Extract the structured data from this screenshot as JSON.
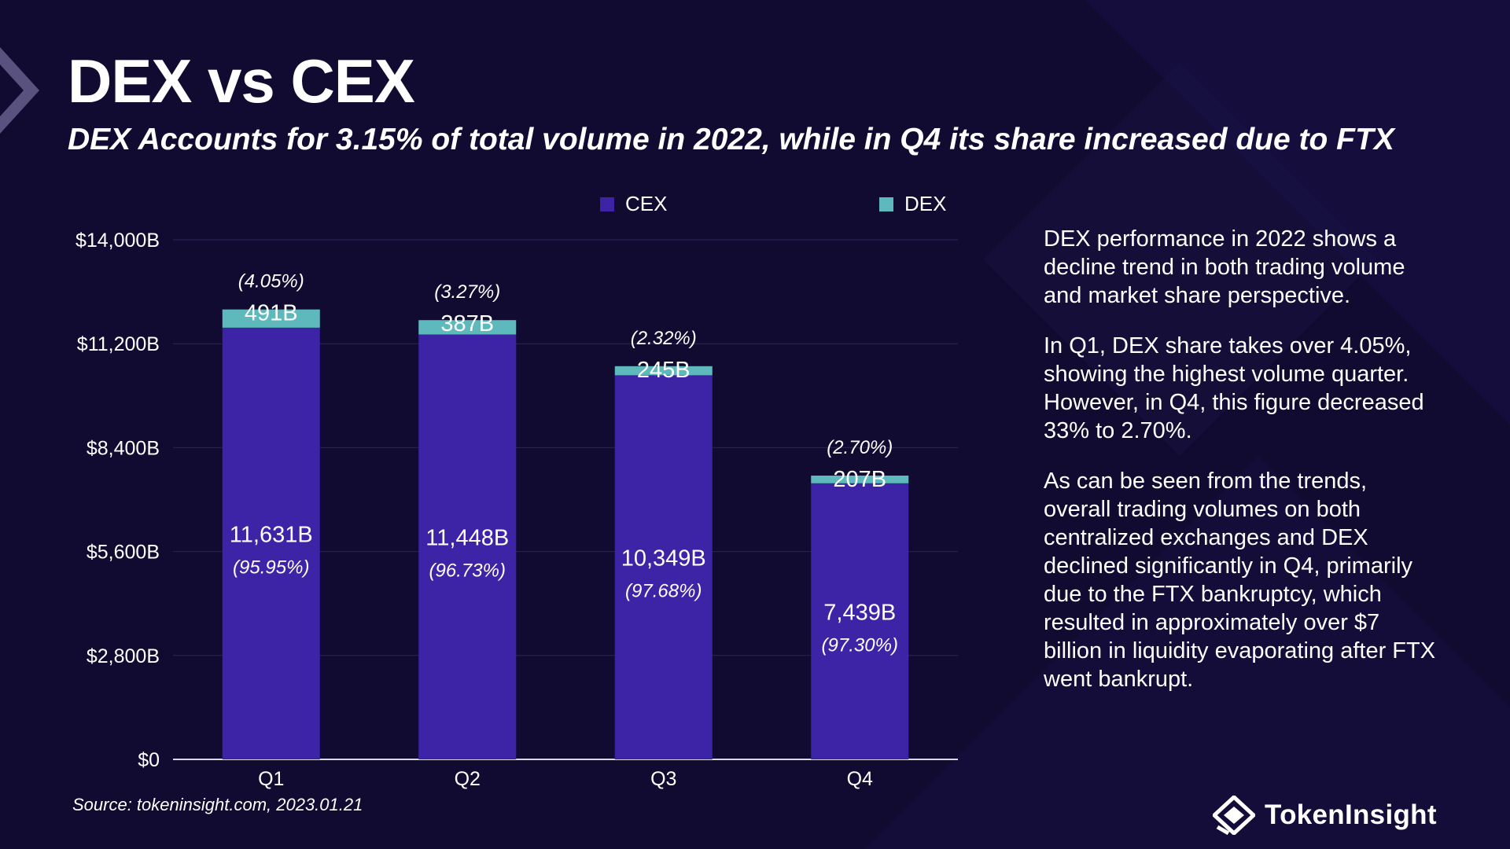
{
  "slide": {
    "title": "DEX vs CEX",
    "subtitle": "DEX Accounts for 3.15% of total volume in 2022, while in Q4 its share increased due to FTX"
  },
  "legend": [
    {
      "label": "CEX",
      "color": "#3d24a6"
    },
    {
      "label": "DEX",
      "color": "#5db9bc"
    }
  ],
  "chart_data": {
    "type": "bar",
    "stacked": true,
    "title": "DEX vs CEX",
    "xlabel": "",
    "ylabel": "",
    "categories": [
      "Q1",
      "Q2",
      "Q3",
      "Q4"
    ],
    "series": [
      {
        "name": "CEX",
        "color": "#3d24a6",
        "values": [
          11631,
          11448,
          10349,
          7439
        ],
        "value_labels": [
          "11,631B",
          "11,448B",
          "10,349B",
          "7,439B"
        ],
        "share_labels": [
          "(95.95%)",
          "(96.73%)",
          "(97.68%)",
          "(97.30%)"
        ]
      },
      {
        "name": "DEX",
        "color": "#5db9bc",
        "values": [
          491,
          387,
          245,
          207
        ],
        "value_labels": [
          "491B",
          "387B",
          "245B",
          "207B"
        ],
        "share_labels": [
          "(4.05%)",
          "(3.27%)",
          "(2.32%)",
          "(2.70%)"
        ]
      }
    ],
    "ylim": [
      0,
      14000
    ],
    "yticks": [
      0,
      2800,
      5600,
      8400,
      11200,
      14000
    ],
    "ytick_labels": [
      "$0",
      "$2,800B",
      "$5,600B",
      "$8,400B",
      "$11,200B",
      "$14,000B"
    ],
    "grid": true,
    "legend_position": "top-center"
  },
  "insights": [
    "DEX performance in 2022 shows a decline trend in both trading volume and market share perspective.",
    "In Q1, DEX share takes over 4.05%, showing the highest volume quarter. However, in Q4, this figure decreased 33% to 2.70%.",
    "As can be seen from the trends, overall trading volumes on both centralized exchanges and DEX declined significantly in Q4, primarily due to the FTX bankruptcy, which resulted in approximately over $7 billion in liquidity evaporating after FTX went bankrupt."
  ],
  "footer": {
    "source": "Source: tokeninsight.com, 2023.01.21",
    "brand_name": "TokenInsight"
  },
  "icons": {
    "brand_logo": "tokeninsight-logo-icon",
    "decoration": "chevron-decoration-icon"
  }
}
